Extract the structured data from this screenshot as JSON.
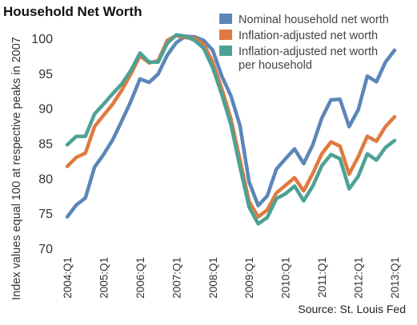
{
  "chart_data": {
    "type": "line",
    "title": "Household Net Worth",
    "ylabel": "Index values equal 100 at respective peaks in 2007",
    "xlabel": "",
    "ylim": [
      70,
      100
    ],
    "yticks": [
      70,
      75,
      80,
      85,
      90,
      95,
      100
    ],
    "xticks": [
      "2004:Q1",
      "2005:Q1",
      "2006:Q1",
      "2007:Q1",
      "2008:Q1",
      "2009:Q1",
      "2010:Q1",
      "2011:Q1",
      "2012:Q1",
      "2013:Q1"
    ],
    "x": [
      "2004:Q1",
      "2004:Q2",
      "2004:Q3",
      "2004:Q4",
      "2005:Q1",
      "2005:Q2",
      "2005:Q3",
      "2005:Q4",
      "2006:Q1",
      "2006:Q2",
      "2006:Q3",
      "2006:Q4",
      "2007:Q1",
      "2007:Q2",
      "2007:Q3",
      "2007:Q4",
      "2008:Q1",
      "2008:Q2",
      "2008:Q3",
      "2008:Q4",
      "2009:Q1",
      "2009:Q2",
      "2009:Q3",
      "2009:Q4",
      "2010:Q1",
      "2010:Q2",
      "2010:Q3",
      "2010:Q4",
      "2011:Q1",
      "2011:Q2",
      "2011:Q3",
      "2011:Q4",
      "2012:Q1",
      "2012:Q2",
      "2012:Q3",
      "2012:Q4",
      "2013:Q1"
    ],
    "legend_position": "top-right",
    "grid": false,
    "series": [
      {
        "name": "Nominal household net worth",
        "color": "#5b86b8",
        "values": [
          74.5,
          76.2,
          77.2,
          81.6,
          83.4,
          85.5,
          88.2,
          91.0,
          94.2,
          93.7,
          94.9,
          97.6,
          99.4,
          100.3,
          100.2,
          99.7,
          98.3,
          94.6,
          91.8,
          87.5,
          79.5,
          76.1,
          77.5,
          81.3,
          82.8,
          84.2,
          82.1,
          84.8,
          88.6,
          91.2,
          91.3,
          87.4,
          89.8,
          94.6,
          93.8,
          96.6,
          98.3
        ]
      },
      {
        "name": "Inflation-adjusted net worth",
        "color": "#e07a40",
        "values": [
          81.7,
          83.0,
          83.6,
          87.4,
          89.0,
          90.6,
          92.6,
          94.9,
          97.5,
          96.5,
          96.8,
          99.7,
          100.4,
          100.1,
          100.0,
          99.2,
          96.6,
          92.8,
          88.5,
          82.6,
          76.7,
          74.5,
          75.5,
          77.9,
          79.0,
          80.1,
          78.2,
          80.7,
          83.5,
          85.2,
          84.6,
          80.6,
          83.1,
          86.0,
          85.3,
          87.4,
          88.8
        ]
      },
      {
        "name": "Inflation-adjusted net worth per household",
        "color": "#4da194",
        "values": [
          84.8,
          86.0,
          86.0,
          89.2,
          90.6,
          92.1,
          93.5,
          95.4,
          97.9,
          96.6,
          96.6,
          99.3,
          100.5,
          100.3,
          99.7,
          98.6,
          95.8,
          92.0,
          87.7,
          81.6,
          75.9,
          73.5,
          74.4,
          77.1,
          77.8,
          78.9,
          76.8,
          78.9,
          81.8,
          83.4,
          82.8,
          78.5,
          80.3,
          83.5,
          82.6,
          84.4,
          85.4
        ]
      }
    ],
    "source": "Source: St. Louis Fed"
  }
}
